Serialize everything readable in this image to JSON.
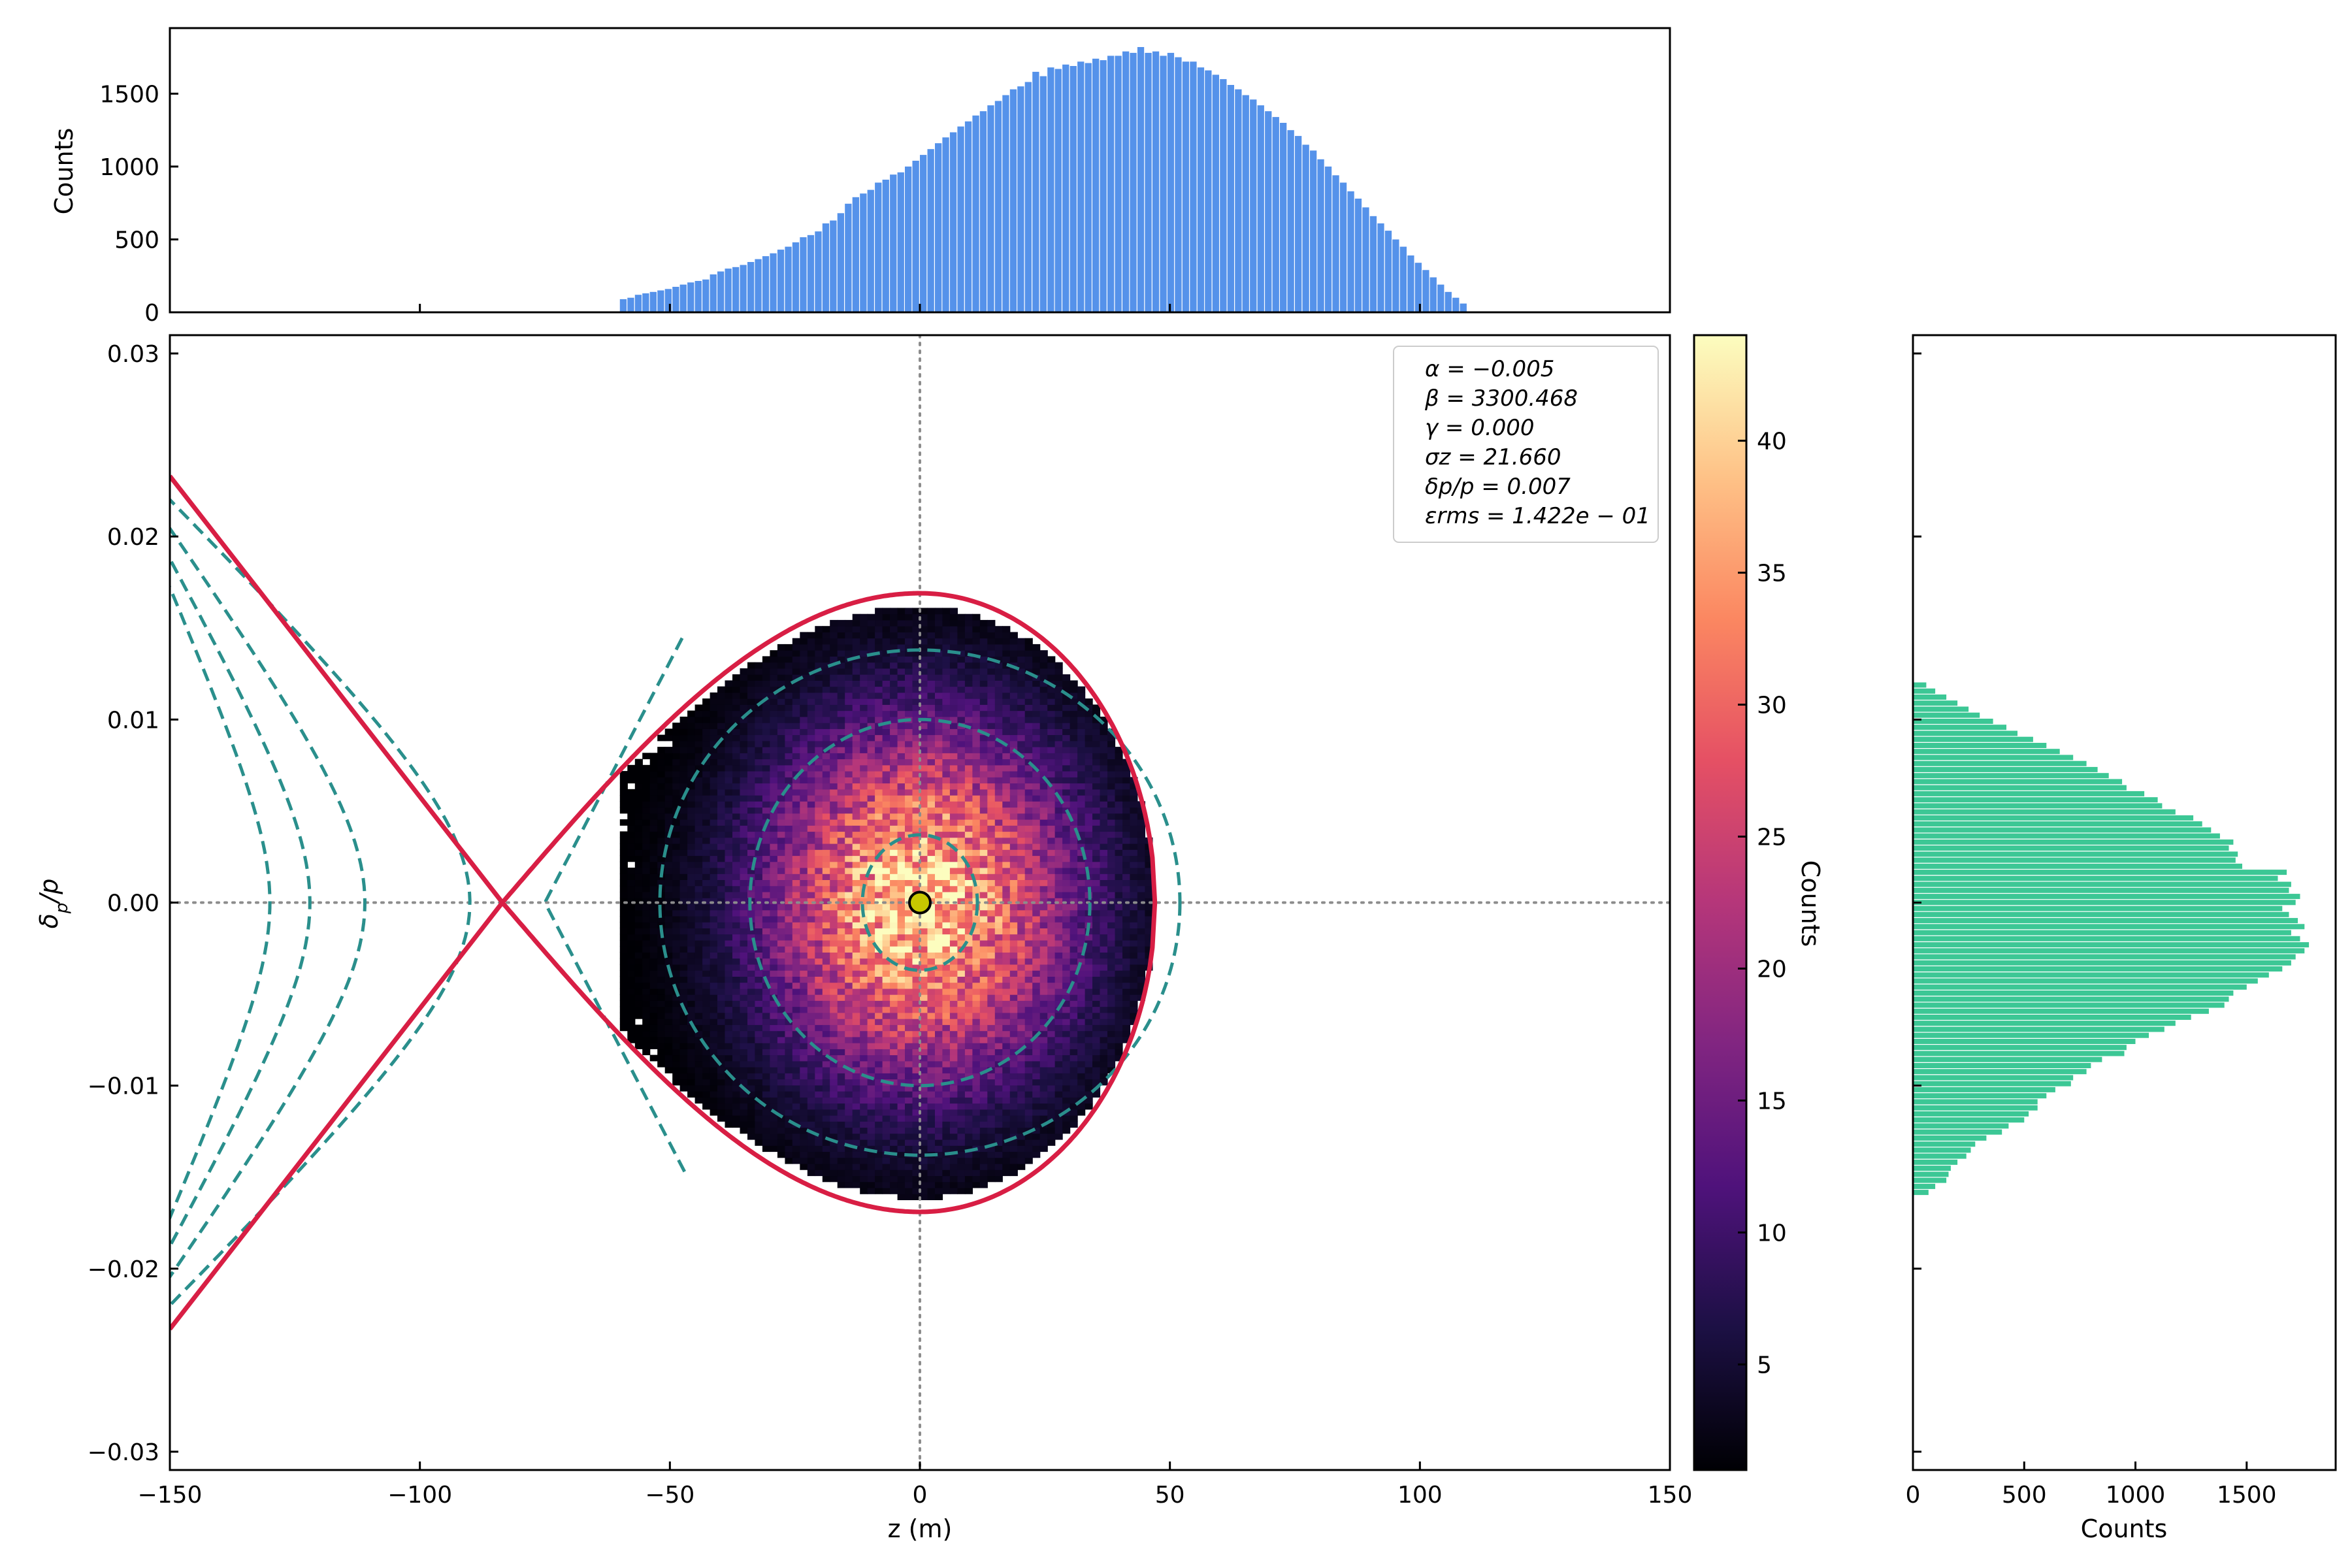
{
  "chart_data": [
    {
      "id": "main",
      "type": "heatmap",
      "xlabel": "z (m)",
      "ylabel": "δp/p",
      "xlim": [
        -150,
        150
      ],
      "ylim": [
        -0.031,
        0.031
      ],
      "xticks": [
        -150,
        -100,
        -50,
        0,
        50,
        100,
        150
      ],
      "xtick_labels": [
        "−150",
        "−100",
        "−50",
        "0",
        "50",
        "100",
        "150"
      ],
      "yticks": [
        -0.03,
        -0.02,
        -0.01,
        0.0,
        0.01,
        0.02,
        0.03
      ],
      "ytick_labels": [
        "−0.03",
        "−0.02",
        "−0.01",
        "0.00",
        "0.01",
        "0.02",
        "0.03"
      ],
      "grid": false,
      "reference_lines": {
        "x": 0,
        "y": 0,
        "style": "dotted",
        "color": "#8c8c8c"
      },
      "density": {
        "colormap": "magma",
        "count_range": [
          1,
          44
        ],
        "peak_counts": 40,
        "sigma_z": 21.66,
        "sigma_delta": 0.0068,
        "z_min": -60,
        "zero_count_color": "#ffffff"
      },
      "separatrix": {
        "color": "#d81e44",
        "x_point": [
          -83.5,
          0.0
        ],
        "bucket_right_edge": [
          47,
          0.0
        ],
        "max_delta": 0.0169,
        "left_arm_end_delta": 0.0233
      },
      "contours": {
        "color": "#2a8f8c",
        "style": "dashed",
        "closed": [
          {
            "half_width_z": 11.5,
            "half_height_delta": 0.0037
          },
          {
            "half_width_z": 34.0,
            "half_height_delta": 0.01
          },
          {
            "half_width_z": 52.0,
            "half_height_delta": 0.0138
          }
        ],
        "open_left": [
          {
            "vertex_z": -75,
            "end_delta": 0.0105
          },
          {
            "vertex_z": -90,
            "end_delta": 0.0211
          },
          {
            "vertex_z": -111,
            "end_delta": 0.0196
          },
          {
            "vertex_z": -122,
            "end_delta": 0.018
          },
          {
            "vertex_z": -130,
            "end_delta": 0.0165
          }
        ]
      },
      "center_marker": {
        "x": 0.0,
        "y": 0.0,
        "color": "#c8c800"
      },
      "stats_box": {
        "position": "top-right",
        "lines": [
          "α = −0.005",
          "β = 3300.468",
          "γ = 0.000",
          "σz = 21.660",
          "δp/p = 0.007",
          "εrms = 1.422e − 01"
        ]
      }
    },
    {
      "id": "top_histogram",
      "type": "bar",
      "ylabel": "Counts",
      "color": "#5592ea",
      "xlim": [
        -150,
        150
      ],
      "ylim": [
        0,
        1950
      ],
      "yticks": [
        0,
        500,
        1000,
        1500
      ],
      "ytick_labels": [
        "0",
        "500",
        "1000",
        "1500"
      ],
      "bin_width": 1.5,
      "bins_x_start": -60,
      "values": [
        90,
        100,
        120,
        130,
        140,
        150,
        160,
        175,
        190,
        205,
        215,
        225,
        260,
        280,
        300,
        310,
        325,
        345,
        365,
        385,
        405,
        430,
        450,
        480,
        515,
        530,
        555,
        610,
        630,
        680,
        745,
        790,
        815,
        840,
        890,
        910,
        945,
        960,
        1000,
        1040,
        1080,
        1120,
        1160,
        1200,
        1235,
        1275,
        1310,
        1350,
        1380,
        1420,
        1450,
        1490,
        1530,
        1550,
        1580,
        1650,
        1620,
        1680,
        1670,
        1700,
        1690,
        1720,
        1710,
        1740,
        1730,
        1760,
        1760,
        1790,
        1780,
        1820,
        1780,
        1790,
        1760,
        1780,
        1750,
        1720,
        1720,
        1680,
        1660,
        1630,
        1600,
        1560,
        1530,
        1490,
        1460,
        1420,
        1380,
        1340,
        1300,
        1250,
        1210,
        1150,
        1110,
        1050,
        1000,
        940,
        890,
        830,
        780,
        720,
        660,
        610,
        560,
        500,
        450,
        390,
        340,
        290,
        240,
        190,
        140,
        100,
        60
      ],
      "values_note_hidden": ""
    },
    {
      "id": "right_histogram",
      "type": "bar",
      "orientation": "horizontal",
      "xlabel": "Counts",
      "color": "#3cc795",
      "xlim": [
        0,
        1900
      ],
      "xticks": [
        0,
        500,
        1000,
        1500
      ],
      "xtick_labels": [
        "0",
        "500",
        "1000",
        "1500"
      ],
      "ylim": [
        -0.031,
        0.031
      ],
      "bin_height": 0.00033,
      "bins_y_start": -0.016,
      "values": [
        70,
        100,
        150,
        160,
        170,
        200,
        240,
        260,
        280,
        330,
        400,
        430,
        500,
        520,
        560,
        560,
        600,
        640,
        710,
        720,
        780,
        800,
        850,
        950,
        960,
        1000,
        1060,
        1130,
        1180,
        1250,
        1330,
        1400,
        1420,
        1440,
        1500,
        1550,
        1600,
        1660,
        1700,
        1720,
        1760,
        1780,
        1740,
        1700,
        1760,
        1730,
        1690,
        1660,
        1720,
        1740,
        1690,
        1700,
        1640,
        1680,
        1480,
        1450,
        1460,
        1420,
        1440,
        1380,
        1340,
        1300,
        1260,
        1180,
        1120,
        1100,
        1040,
        960,
        940,
        880,
        830,
        780,
        720,
        660,
        600,
        540,
        470,
        420,
        360,
        300,
        250,
        200,
        150,
        100,
        60
      ],
      "values_note_hidden": ""
    }
  ],
  "colorbar": {
    "label": "Counts",
    "range": [
      1,
      44
    ],
    "ticks": [
      5,
      10,
      15,
      20,
      25,
      30,
      35,
      40
    ],
    "tick_labels": [
      "5",
      "10",
      "15",
      "20",
      "25",
      "30",
      "35",
      "40"
    ]
  }
}
